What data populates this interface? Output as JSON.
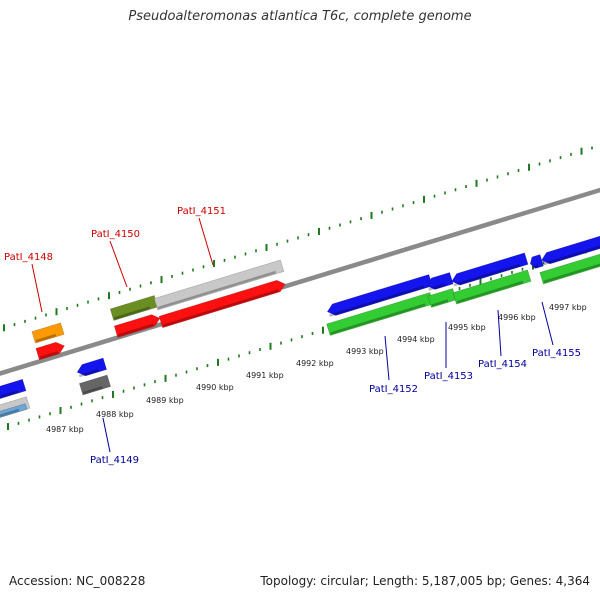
{
  "title": "Pseudoalteromonas atlantica T6c, complete genome",
  "footer": {
    "accession": "Accession: NC_008228",
    "stats": "Topology: circular; Length: 5,187,005 bp; Genes: 4,364"
  },
  "colors": {
    "backbone": "#8a8a8a",
    "tick": "#1f7a1f",
    "label_red": "#cc0000",
    "label_blue": "#000099",
    "gene_red": "#ff1010",
    "gene_blue": "#1414ee",
    "gene_green": "#33cc33",
    "gene_olive": "#6b8e23",
    "gene_gray": "#c8c8c8",
    "gene_orange": "#ff9900",
    "gene_darkgray": "#666666",
    "gene_lightblue": "#6ca6d9"
  },
  "scale_labels": [
    "4987 kbp",
    "4988 kbp",
    "4989 kbp",
    "4990 kbp",
    "4991 kbp",
    "4992 kbp",
    "4993 kbp",
    "4994 kbp",
    "4995 kbp",
    "4996 kbp",
    "4997 kbp"
  ],
  "gene_labels": [
    "PatI_4148",
    "PatI_4149",
    "PatI_4150",
    "PatI_4151",
    "PatI_4152",
    "PatI_4153",
    "PatI_4154",
    "PatI_4155"
  ]
}
